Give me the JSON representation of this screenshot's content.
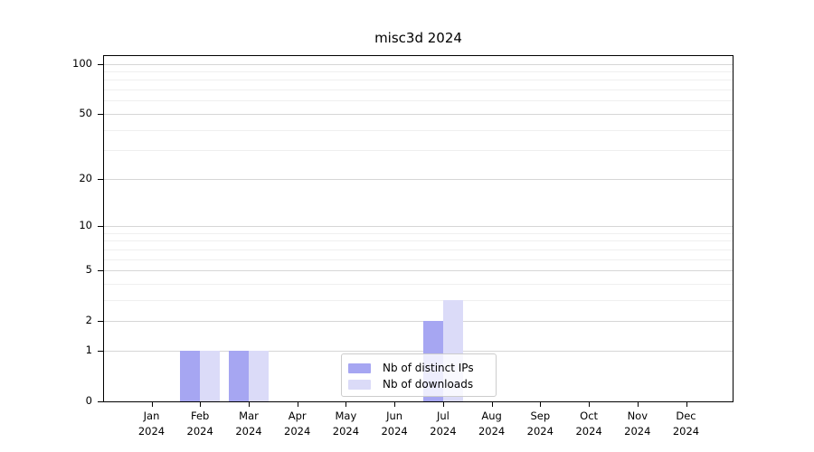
{
  "figure": {
    "title": "misc3d 2024"
  },
  "chart_data": {
    "type": "bar",
    "title": "misc3d 2024",
    "categories": [
      "Jan 2024",
      "Feb 2024",
      "Mar 2024",
      "Apr 2024",
      "May 2024",
      "Jun 2024",
      "Jul 2024",
      "Aug 2024",
      "Sep 2024",
      "Oct 2024",
      "Nov 2024",
      "Dec 2024"
    ],
    "series": [
      {
        "name": "Nb of distinct IPs",
        "color": "#a6a6f2",
        "values": [
          0,
          1,
          1,
          0,
          0,
          0,
          2,
          0,
          0,
          0,
          0,
          0
        ]
      },
      {
        "name": "Nb of downloads",
        "color": "#dbdbf8",
        "values": [
          0,
          1,
          1,
          0,
          0,
          0,
          3,
          0,
          0,
          0,
          0,
          0
        ]
      }
    ],
    "xlabel": "",
    "ylabel": "",
    "yscale": "log1p",
    "ylim": [
      0,
      100
    ],
    "yticks_major": [
      0,
      1,
      2,
      5,
      10,
      20,
      50,
      100
    ],
    "yticks_minor": [
      3,
      4,
      6,
      7,
      8,
      9,
      30,
      40,
      60,
      70,
      80,
      90
    ],
    "grid": "horizontal",
    "legend_position": "inside-bottom-center",
    "colors": {
      "grid_major": "#d6d6d6",
      "grid_minor": "#efefef",
      "axis": "#000000",
      "text": "#000000",
      "background": "#ffffff"
    }
  }
}
